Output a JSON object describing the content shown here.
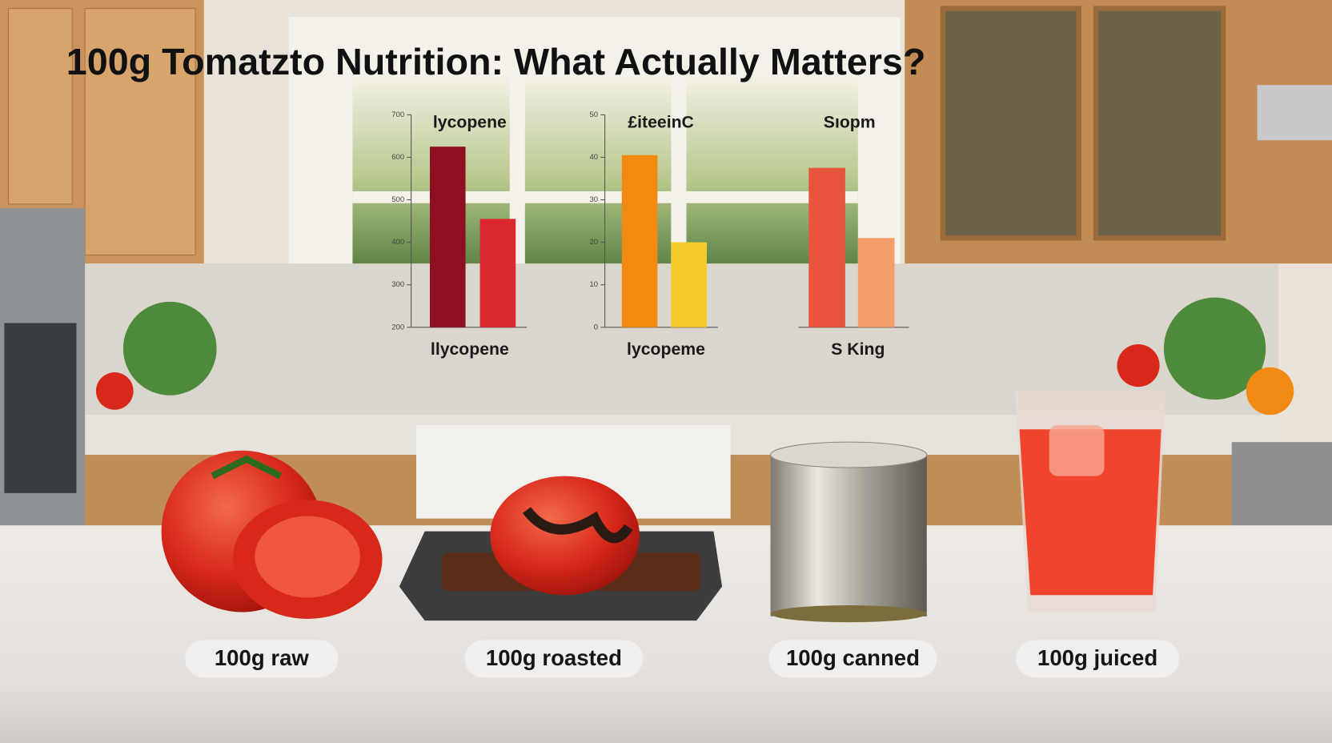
{
  "title": "100g Tomatzto Nutrition: What Actually Matters?",
  "chart_data": [
    {
      "type": "bar",
      "title": "lycopene",
      "x_label": "llycopene",
      "categories": [
        null,
        null
      ],
      "values": [
        625,
        455
      ],
      "colors": [
        "#8e1020",
        "#d8282c"
      ],
      "ylim": [
        200,
        700
      ],
      "yticks": [
        200,
        300,
        400,
        500,
        600,
        700
      ]
    },
    {
      "type": "bar",
      "title": "£iteeinC",
      "x_label": "lycopeme",
      "categories": [
        null,
        null
      ],
      "values": [
        40.5,
        20
      ],
      "colors": [
        "#f28a12",
        "#f4cc2a"
      ],
      "ylim": [
        0,
        50
      ],
      "yticks": [
        0,
        10,
        20,
        30,
        40,
        50
      ]
    },
    {
      "type": "bar",
      "title": "Sıopm",
      "x_label": "S King",
      "categories": [
        null,
        null
      ],
      "values": [
        75,
        42
      ],
      "colors": [
        "#e8553c",
        "#f49c6a"
      ],
      "ylim": [
        0,
        100
      ]
    }
  ],
  "labels": [
    "100g raw",
    "100g roasted",
    "100g canned",
    "100g juiced"
  ]
}
